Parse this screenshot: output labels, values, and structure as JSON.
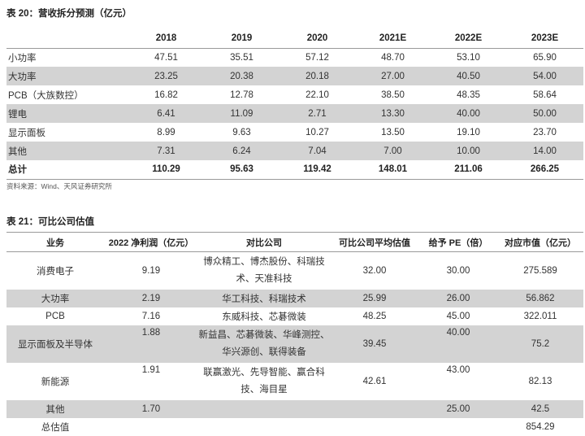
{
  "table1": {
    "title": "表 20：营收拆分预测（亿元）",
    "columns": [
      "",
      "2018",
      "2019",
      "2020",
      "2021E",
      "2022E",
      "2023E"
    ],
    "rows": [
      {
        "label": "小功率",
        "values": [
          "47.51",
          "35.51",
          "57.12",
          "48.70",
          "53.10",
          "65.90"
        ]
      },
      {
        "label": "大功率",
        "values": [
          "23.25",
          "20.38",
          "20.18",
          "27.00",
          "40.50",
          "54.00"
        ]
      },
      {
        "label": "PCB（大族数控）",
        "values": [
          "16.82",
          "12.78",
          "22.10",
          "38.50",
          "48.35",
          "58.64"
        ]
      },
      {
        "label": "锂电",
        "values": [
          "6.41",
          "11.09",
          "2.71",
          "13.30",
          "40.00",
          "50.00"
        ]
      },
      {
        "label": "显示面板",
        "values": [
          "8.99",
          "9.63",
          "10.27",
          "13.50",
          "19.10",
          "23.70"
        ]
      },
      {
        "label": "其他",
        "values": [
          "7.31",
          "6.24",
          "7.04",
          "7.00",
          "10.00",
          "14.00"
        ]
      },
      {
        "label": "总计",
        "values": [
          "110.29",
          "95.63",
          "119.42",
          "148.01",
          "211.06",
          "266.25"
        ]
      }
    ],
    "source": "资料来源：Wind、天风证券研究所"
  },
  "table2": {
    "title": "表 21：可比公司估值",
    "columns": [
      "业务",
      "2022 净利润（亿元）",
      "对比公司",
      "可比公司平均估值",
      "给予 PE（倍）",
      "对应市值（亿元）"
    ],
    "rows": [
      {
        "business": "消费电子",
        "profit": "9.19",
        "companies": "博众精工、博杰股份、科瑞技术、天准科技",
        "avg_pe": "32.00",
        "pe": "30.00",
        "market_value": "275.589"
      },
      {
        "business": "大功率",
        "profit": "2.19",
        "companies": "华工科技、科瑞技术",
        "avg_pe": "25.99",
        "pe": "26.00",
        "market_value": "56.862"
      },
      {
        "business": "PCB",
        "profit": "7.16",
        "companies": "东威科技、芯碁微装",
        "avg_pe": "48.25",
        "pe": "45.00",
        "market_value": "322.011"
      },
      {
        "business": "显示面板及半导体",
        "profit": "1.88",
        "companies": "新益昌、芯碁微装、华峰测控、华兴源创、联得装备",
        "avg_pe": "39.45",
        "pe": "40.00",
        "market_value": "75.2"
      },
      {
        "business": "新能源",
        "profit": "1.91",
        "companies": "联赢激光、先导智能、赢合科技、海目星",
        "avg_pe": "42.61",
        "pe": "43.00",
        "market_value": "82.13"
      },
      {
        "business": "其他",
        "profit": "1.70",
        "companies": "",
        "avg_pe": "",
        "pe": "25.00",
        "market_value": "42.5"
      },
      {
        "business": "总估值",
        "profit": "",
        "companies": "",
        "avg_pe": "",
        "pe": "",
        "market_value": "854.29"
      }
    ]
  }
}
